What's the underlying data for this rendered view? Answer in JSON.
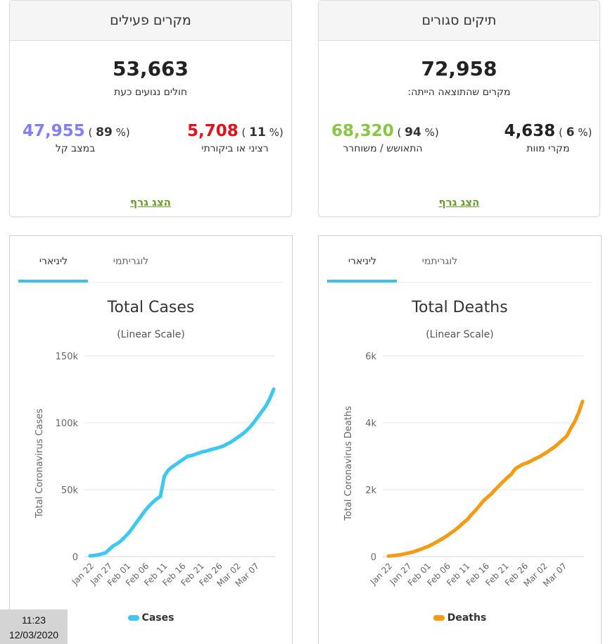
{
  "active_cases": {
    "header": "מקרים פעילים",
    "total": "53,663",
    "caption": "חולים נגועים כעת",
    "mild": {
      "value": "47,955",
      "percent": "89",
      "label": "במצב קל",
      "color": "#8080f0"
    },
    "serious": {
      "value": "5,708",
      "percent": "11",
      "label": "רציני או ביקורתי",
      "color": "#e0131c"
    },
    "show_graph": "הצג גרף"
  },
  "closed_cases": {
    "header": "תיקים סגורים",
    "total": "72,958",
    "caption": "מקרים שהתוצאה הייתה:",
    "recovered": {
      "value": "68,320",
      "percent": "94",
      "label": "התאושש / משוחרר",
      "color": "#8ac545"
    },
    "deaths": {
      "value": "4,638",
      "percent": "6",
      "label": "מקרי מוות",
      "color": "#222222"
    },
    "show_graph": "הצג גרף"
  },
  "tabs": {
    "linear": "ליניארי",
    "log": "לוגריתמי"
  },
  "accent_color": "#3cc0e8",
  "clock": {
    "time": "11:23",
    "date": "12/03/2020"
  },
  "chart_data": [
    {
      "type": "line",
      "title": "Total Cases",
      "subtitle": "(Linear Scale)",
      "xlabel": "",
      "ylabel": "Total Coronavirus Cases",
      "ylim": [
        0,
        150000
      ],
      "yticks": [
        0,
        50000,
        100000,
        150000
      ],
      "ytick_labels": [
        "0",
        "50k",
        "100k",
        "150k"
      ],
      "xtick_labels": [
        "Jan 22",
        "Jan 27",
        "Feb 01",
        "Feb 06",
        "Feb 11",
        "Feb 16",
        "Feb 21",
        "Feb 26",
        "Mar 02",
        "Mar 07"
      ],
      "grid": true,
      "legend": "bottom",
      "series": [
        {
          "name": "Cases",
          "color": "#3cc8f0",
          "values": [
            580,
            850,
            1300,
            2000,
            2900,
            5600,
            8200,
            9800,
            12000,
            15000,
            18000,
            22000,
            26000,
            30000,
            34000,
            37500,
            40500,
            43000,
            45000,
            60000,
            64500,
            67000,
            69000,
            71000,
            73000,
            75000,
            75500,
            76500,
            77500,
            78500,
            79000,
            80000,
            80700,
            81500,
            82500,
            84000,
            85500,
            87500,
            89500,
            91500,
            94000,
            97000,
            100500,
            104500,
            108500,
            112500,
            118000,
            125000
          ]
        }
      ]
    },
    {
      "type": "line",
      "title": "Total Deaths",
      "subtitle": "(Linear Scale)",
      "xlabel": "",
      "ylabel": "Total Coronavirus Deaths",
      "ylim": [
        0,
        6000
      ],
      "yticks": [
        0,
        2000,
        4000,
        6000
      ],
      "ytick_labels": [
        "0",
        "2k",
        "4k",
        "6k"
      ],
      "xtick_labels": [
        "Jan 22",
        "Jan 27",
        "Feb 01",
        "Feb 06",
        "Feb 11",
        "Feb 16",
        "Feb 21",
        "Feb 26",
        "Mar 02",
        "Mar 07"
      ],
      "grid": true,
      "legend": "bottom",
      "series": [
        {
          "name": "Deaths",
          "color": "#f59b12",
          "values": [
            17,
            25,
            41,
            56,
            80,
            106,
            132,
            170,
            213,
            259,
            304,
            362,
            426,
            492,
            565,
            638,
            724,
            813,
            910,
            1018,
            1115,
            1261,
            1383,
            1526,
            1669,
            1775,
            1873,
            2009,
            2126,
            2247,
            2360,
            2460,
            2618,
            2699,
            2763,
            2800,
            2858,
            2923,
            2977,
            3050,
            3117,
            3202,
            3285,
            3387,
            3494,
            3599,
            3827,
            4025,
            4296,
            4638
          ]
        }
      ]
    }
  ]
}
